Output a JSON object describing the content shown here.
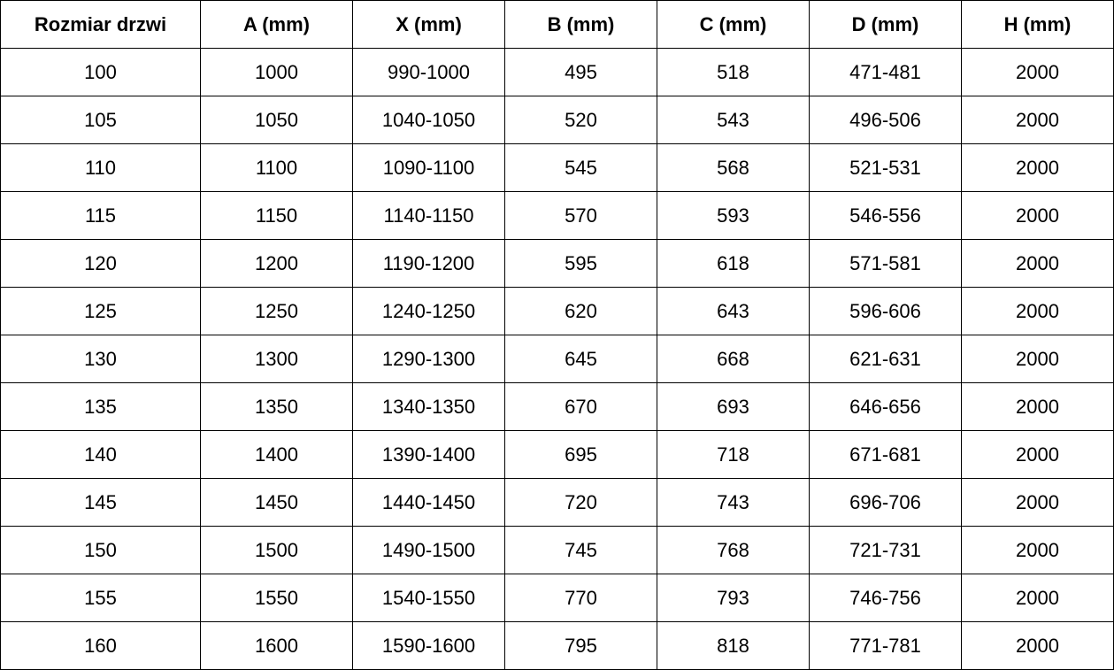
{
  "table": {
    "header": [
      "Rozmiar drzwi",
      "A (mm)",
      "X (mm)",
      "B (mm)",
      "C (mm)",
      "D (mm)",
      "H (mm)"
    ],
    "rows": [
      [
        100,
        1000,
        "990-1000",
        495,
        518,
        "471-481",
        2000
      ],
      [
        105,
        1050,
        "1040-1050",
        520,
        543,
        "496-506",
        2000
      ],
      [
        110,
        1100,
        "1090-1100",
        545,
        568,
        "521-531",
        2000
      ],
      [
        115,
        1150,
        "1140-1150",
        570,
        593,
        "546-556",
        2000
      ],
      [
        120,
        1200,
        "1190-1200",
        595,
        618,
        "571-581",
        2000
      ],
      [
        125,
        1250,
        "1240-1250",
        620,
        643,
        "596-606",
        2000
      ],
      [
        130,
        1300,
        "1290-1300",
        645,
        668,
        "621-631",
        2000
      ],
      [
        135,
        1350,
        "1340-1350",
        670,
        693,
        "646-656",
        2000
      ],
      [
        140,
        1400,
        "1390-1400",
        695,
        718,
        "671-681",
        2000
      ],
      [
        145,
        1450,
        "1440-1450",
        720,
        743,
        "696-706",
        2000
      ],
      [
        150,
        1500,
        "1490-1500",
        745,
        768,
        "721-731",
        2000
      ],
      [
        155,
        1550,
        "1540-1550",
        770,
        793,
        "746-756",
        2000
      ],
      [
        160,
        1600,
        "1590-1600",
        795,
        818,
        "771-781",
        2000
      ]
    ]
  }
}
